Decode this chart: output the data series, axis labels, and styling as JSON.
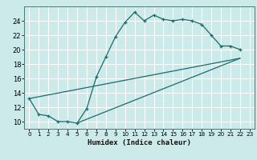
{
  "title": "",
  "xlabel": "Humidex (Indice chaleur)",
  "bg_color": "#cceaea",
  "grid_color": "#ffffff",
  "line_color": "#1a6b6b",
  "xlim": [
    -0.5,
    23.5
  ],
  "ylim": [
    9,
    26
  ],
  "xticks": [
    0,
    1,
    2,
    3,
    4,
    5,
    6,
    7,
    8,
    9,
    10,
    11,
    12,
    13,
    14,
    15,
    16,
    17,
    18,
    19,
    20,
    21,
    22,
    23
  ],
  "yticks": [
    10,
    12,
    14,
    16,
    18,
    20,
    22,
    24
  ],
  "line1_x": [
    0,
    1,
    2,
    3,
    4,
    5,
    6,
    7,
    8,
    9,
    10,
    11,
    12,
    13,
    14,
    15,
    16,
    17,
    18,
    19,
    20,
    21,
    22
  ],
  "line1_y": [
    13.2,
    11.0,
    10.8,
    10.0,
    10.0,
    9.8,
    11.8,
    16.2,
    19.0,
    21.8,
    23.8,
    25.2,
    24.0,
    24.8,
    24.2,
    24.0,
    24.2,
    24.0,
    23.5,
    22.0,
    20.5,
    20.5,
    20.0
  ],
  "line2_x": [
    0,
    22
  ],
  "line2_y": [
    13.2,
    18.8
  ],
  "line3_x": [
    5,
    22
  ],
  "line3_y": [
    9.8,
    18.8
  ]
}
